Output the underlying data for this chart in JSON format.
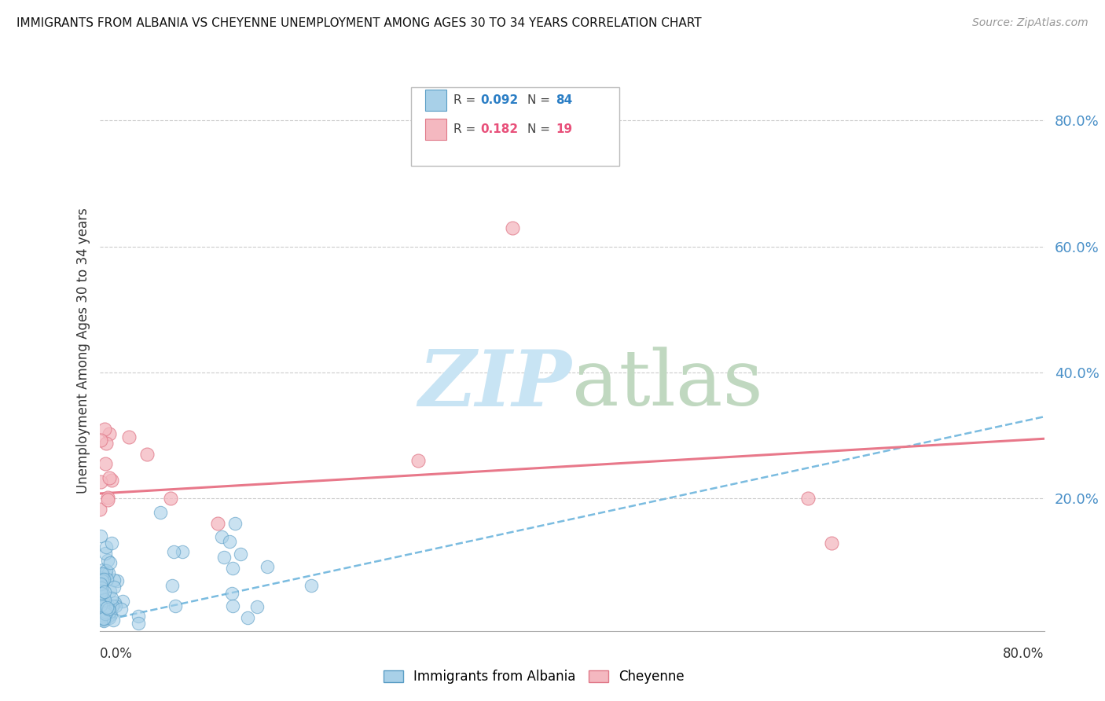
{
  "title": "IMMIGRANTS FROM ALBANIA VS CHEYENNE UNEMPLOYMENT AMONG AGES 30 TO 34 YEARS CORRELATION CHART",
  "source": "Source: ZipAtlas.com",
  "ylabel": "Unemployment Among Ages 30 to 34 years",
  "xlim": [
    0.0,
    0.8
  ],
  "ylim": [
    -0.01,
    0.88
  ],
  "ytick_vals": [
    0.2,
    0.4,
    0.6,
    0.8
  ],
  "ytick_labels": [
    "20.0%",
    "40.0%",
    "60.0%",
    "80.0%"
  ],
  "color_blue_fill": "#A8D0E8",
  "color_blue_edge": "#5A9DC5",
  "color_pink_fill": "#F4B8C0",
  "color_pink_edge": "#E07888",
  "color_blue_trend": "#7BBCE0",
  "color_pink_trend": "#E8788A",
  "watermark_zip_color": "#D0E8F4",
  "watermark_atlas_color": "#C8DCC8",
  "background_color": "#FFFFFF",
  "blue_trend_x": [
    0.0,
    0.8
  ],
  "blue_trend_y": [
    0.005,
    0.33
  ],
  "pink_trend_x": [
    0.0,
    0.8
  ],
  "pink_trend_y": [
    0.208,
    0.295
  ]
}
